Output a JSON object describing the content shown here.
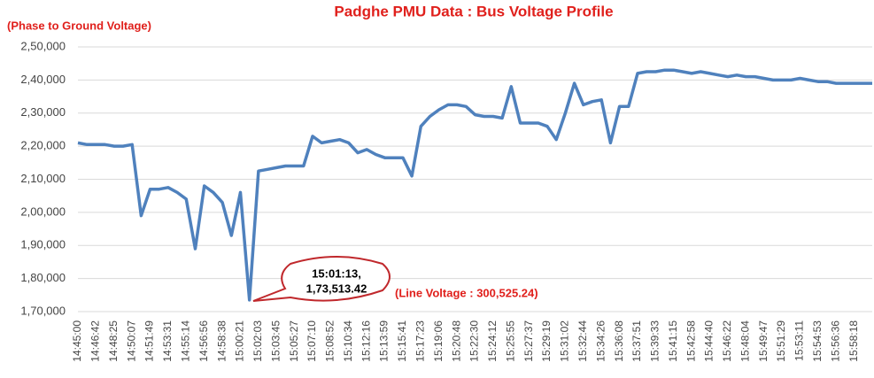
{
  "chart_data": {
    "type": "line",
    "title": "Padghe PMU Data : Bus Voltage Profile",
    "y_label": "(Phase to Ground Voltage)",
    "annotation": {
      "lines": [
        "15:01:13,",
        "1,73,513.42"
      ],
      "note": "(Line Voltage : 300,525.24)"
    },
    "categories": [
      "14:45:00",
      null,
      "14:46:42",
      null,
      "14:48:25",
      null,
      "14:50:07",
      null,
      "14:51:49",
      null,
      "14:53:31",
      null,
      "14:55:14",
      null,
      "14:56:56",
      null,
      "14:58:38",
      null,
      "15:00:21",
      null,
      "15:02:03",
      null,
      "15:03:45",
      null,
      "15:05:27",
      null,
      "15:07:10",
      null,
      "15:08:52",
      null,
      "15:10:34",
      null,
      "15:12:16",
      null,
      "15:13:59",
      null,
      "15:15:41",
      null,
      "15:17:23",
      null,
      "15:19:06",
      null,
      "15:20:48",
      null,
      "15:22:30",
      null,
      "15:24:12",
      null,
      "15:25:55",
      null,
      "15:27:37",
      null,
      "15:29:19",
      null,
      "15:31:02",
      null,
      "15:32:44",
      null,
      "15:34:26",
      null,
      "15:36:08",
      null,
      "15:37:51",
      null,
      "15:39:33",
      null,
      "15:41:15",
      null,
      "15:42:58",
      null,
      "15:44:40",
      null,
      "15:46:22",
      null,
      "15:48:04",
      null,
      "15:49:47",
      null,
      "15:51:29",
      null,
      "15:53:11",
      null,
      "15:54:53",
      null,
      "15:56:36",
      null,
      "15:58:18",
      null,
      null
    ],
    "series": [
      {
        "name": "Bus Voltage",
        "color": "#4f81bd",
        "values": [
          221000,
          220500,
          220500,
          220500,
          220000,
          220000,
          220500,
          199000,
          207000,
          207000,
          207500,
          206000,
          204000,
          189000,
          208000,
          206000,
          203000,
          193000,
          206000,
          173513.42,
          212500,
          213000,
          213500,
          214000,
          214000,
          214000,
          223000,
          221000,
          221500,
          222000,
          221000,
          218000,
          219000,
          217500,
          216500,
          216500,
          216500,
          211000,
          226000,
          229000,
          231000,
          232500,
          232500,
          232000,
          229500,
          229000,
          229000,
          228500,
          238000,
          227000,
          227000,
          227000,
          226000,
          222000,
          230000,
          239000,
          232500,
          233500,
          234000,
          221000,
          232000,
          232000,
          242000,
          242500,
          242500,
          243000,
          243000,
          242500,
          242000,
          242500,
          242000,
          241500,
          241000,
          241500,
          241000,
          241000,
          240500,
          240000,
          240000,
          240000,
          240500,
          240000,
          239500,
          239500,
          239000,
          239000,
          239000,
          239000,
          239000
        ]
      }
    ],
    "ylim": [
      170000,
      250000
    ],
    "yticks": [
      {
        "value": 170000,
        "label": "1,70,000"
      },
      {
        "value": 180000,
        "label": "1,80,000"
      },
      {
        "value": 190000,
        "label": "1,90,000"
      },
      {
        "value": 200000,
        "label": "2,00,000"
      },
      {
        "value": 210000,
        "label": "2,10,000"
      },
      {
        "value": 220000,
        "label": "2,20,000"
      },
      {
        "value": 230000,
        "label": "2,30,000"
      },
      {
        "value": 240000,
        "label": "2,40,000"
      },
      {
        "value": 250000,
        "label": "2,50,000"
      }
    ],
    "grid": true
  }
}
